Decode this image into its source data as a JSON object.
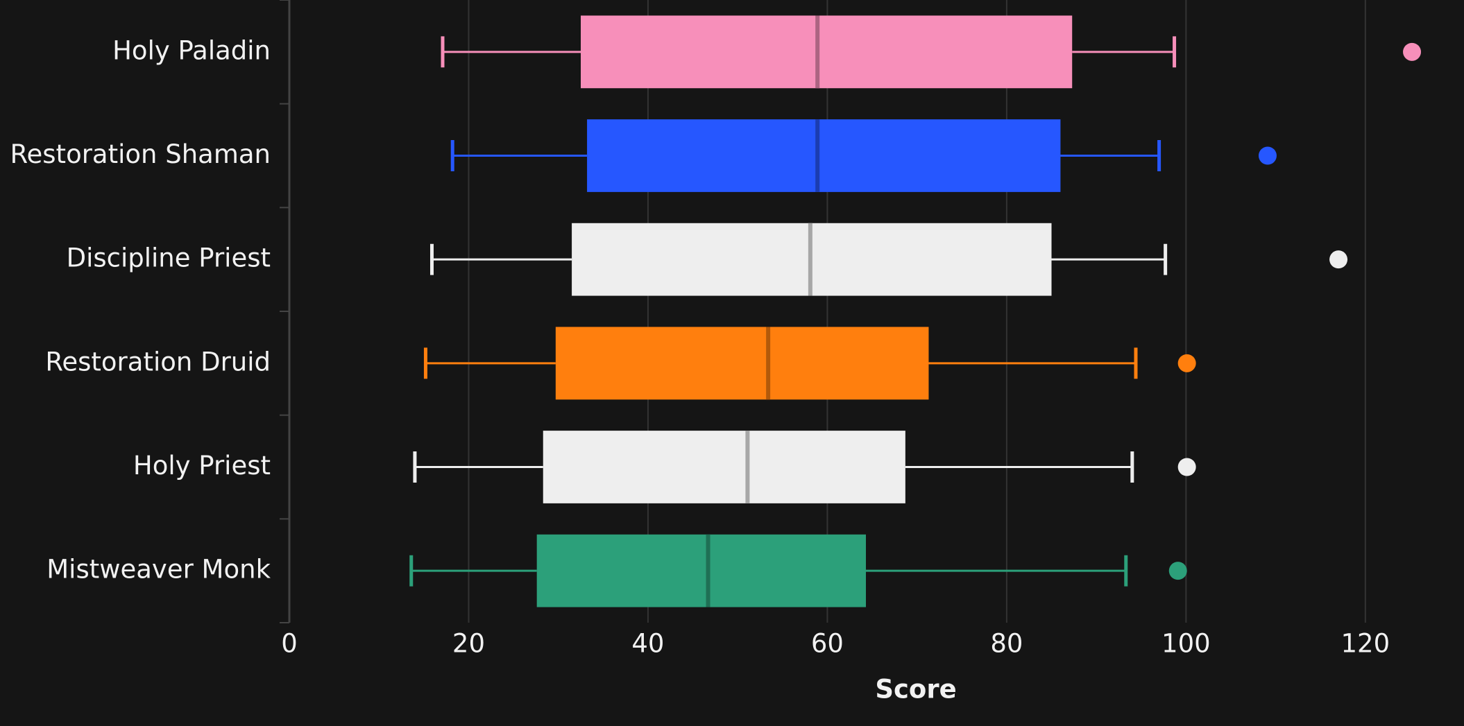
{
  "chart_data": {
    "type": "boxplot",
    "xlabel": "Score",
    "categories": [
      "Holy Paladin",
      "Restoration Shaman",
      "Discipline Priest",
      "Restoration Druid",
      "Holy Priest",
      "Mistweaver Monk"
    ],
    "colors": [
      "#f78fba",
      "#2657ff",
      "#eeeeee",
      "#ff7f0e",
      "#eeeeee",
      "#2ca07a"
    ],
    "boxes": [
      {
        "whislo": 17.1,
        "q1": 32.5,
        "med": 58.9,
        "q3": 87.3,
        "whishi": 98.7,
        "fliers": [
          125.2
        ]
      },
      {
        "whislo": 18.2,
        "q1": 33.2,
        "med": 58.9,
        "q3": 86.0,
        "whishi": 97.0,
        "fliers": [
          109.1
        ]
      },
      {
        "whislo": 15.9,
        "q1": 31.5,
        "med": 58.1,
        "q3": 85.0,
        "whishi": 97.7,
        "fliers": [
          117.0
        ]
      },
      {
        "whislo": 15.2,
        "q1": 29.7,
        "med": 53.4,
        "q3": 71.3,
        "whishi": 94.4,
        "fliers": [
          100.1
        ]
      },
      {
        "whislo": 14.0,
        "q1": 28.3,
        "med": 51.1,
        "q3": 68.7,
        "whishi": 94.0,
        "fliers": [
          100.1
        ]
      },
      {
        "whislo": 13.6,
        "q1": 27.6,
        "med": 46.7,
        "q3": 64.3,
        "whishi": 93.3,
        "fliers": [
          99.1
        ]
      }
    ],
    "xlim": [
      0,
      131
    ],
    "xticks": [
      0,
      20,
      40,
      60,
      80,
      100,
      120
    ],
    "grid": true
  }
}
